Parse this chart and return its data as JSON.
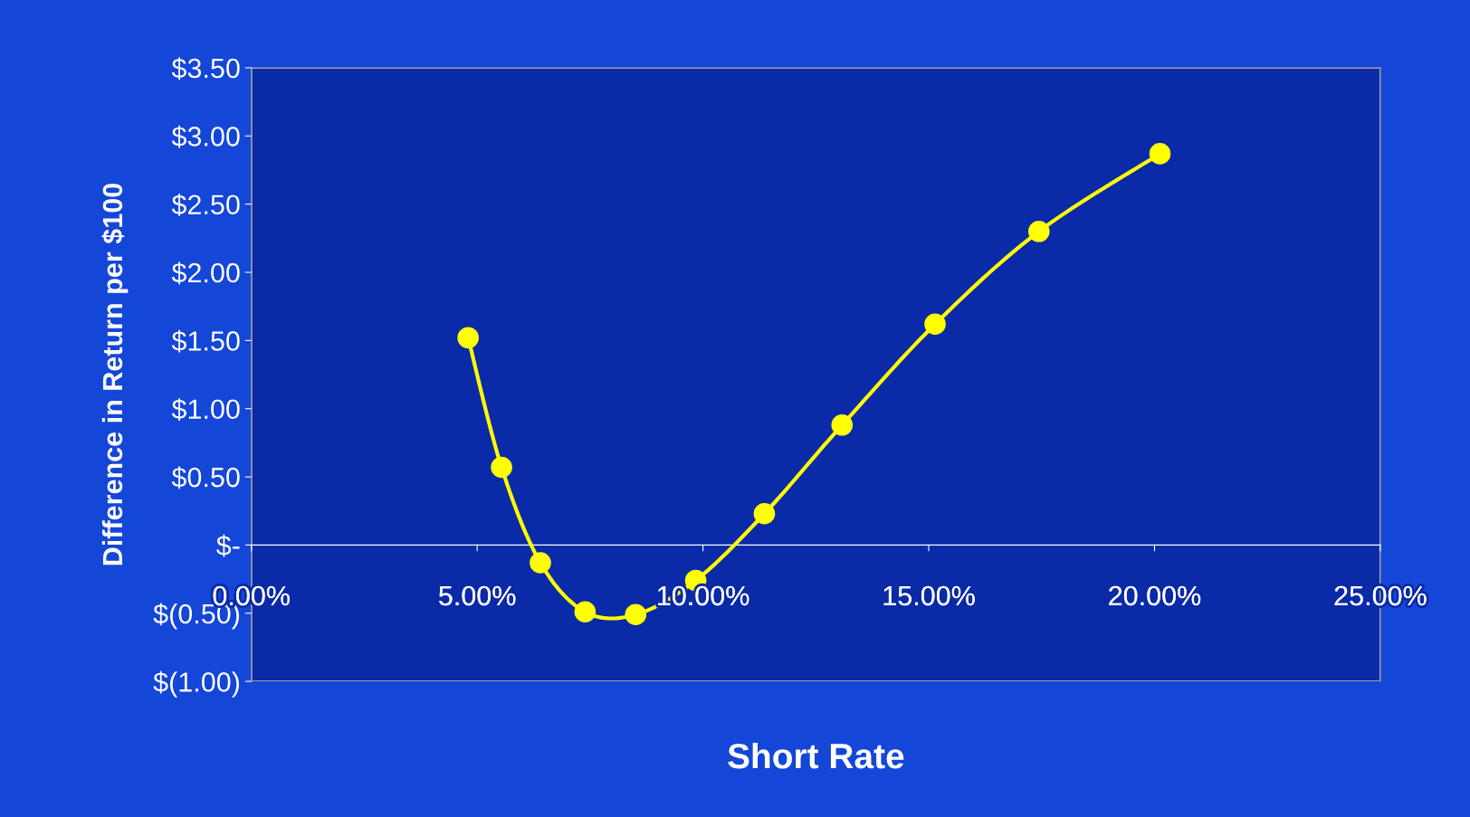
{
  "chart_data": {
    "type": "line",
    "xlabel": "Short Rate",
    "ylabel": "Difference in Return per $100",
    "x": [
      4.8,
      5.54,
      6.4,
      7.39,
      8.51,
      9.84,
      11.36,
      13.08,
      15.14,
      17.44,
      20.12
    ],
    "series": [
      {
        "color": "#ffff00",
        "values": [
          1.52,
          0.57,
          -0.13,
          -0.49,
          -0.51,
          -0.26,
          0.23,
          0.88,
          1.62,
          2.3,
          2.87
        ]
      }
    ],
    "marker": "circle",
    "line_style": "solid",
    "grid": false,
    "legend": false,
    "xlim": [
      0,
      25
    ],
    "xticks": [
      {
        "value": 0,
        "label": "0.00%"
      },
      {
        "value": 5,
        "label": "5.00%"
      },
      {
        "value": 10,
        "label": "10.00%"
      },
      {
        "value": 15,
        "label": "15.00%"
      },
      {
        "value": 20,
        "label": "20.00%"
      },
      {
        "value": 25,
        "label": "25.00%"
      }
    ],
    "ylim": [
      -1,
      3.5
    ],
    "yticks": [
      {
        "value": 3.5,
        "label": "$3.50"
      },
      {
        "value": 3,
        "label": "$3.00"
      },
      {
        "value": 2.5,
        "label": "$2.50"
      },
      {
        "value": 2,
        "label": "$2.00"
      },
      {
        "value": 1.5,
        "label": "$1.50"
      },
      {
        "value": 1,
        "label": "$1.00"
      },
      {
        "value": 0.5,
        "label": "$0.50"
      },
      {
        "value": 0,
        "label": "$-"
      },
      {
        "value": -0.5,
        "label": "$(0.50)"
      },
      {
        "value": -1,
        "label": "$(1.00)"
      }
    ]
  }
}
